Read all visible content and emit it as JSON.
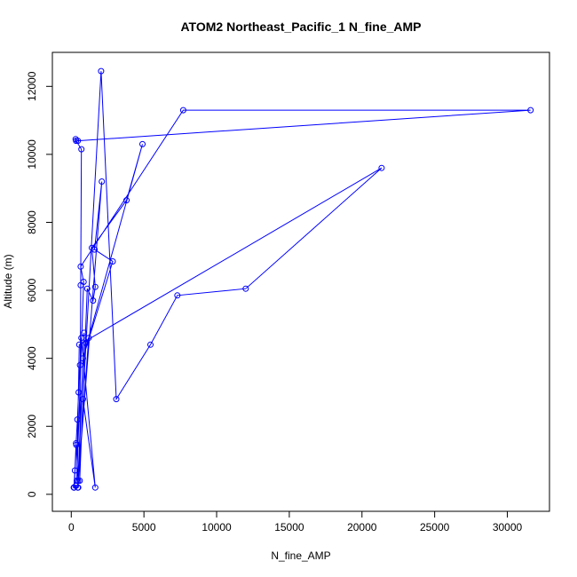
{
  "chart_data": {
    "type": "line",
    "title": "ATOM2 Northeast_Pacific_1 N_fine_AMP",
    "xlabel": "N_fine_AMP",
    "ylabel": "Altitude (m)",
    "xlim": [
      -1300,
      32900
    ],
    "ylim": [
      -500,
      13000
    ],
    "xticks": [
      0,
      5000,
      10000,
      15000,
      20000,
      25000,
      30000
    ],
    "yticks": [
      0,
      2000,
      4000,
      6000,
      8000,
      10000,
      12000
    ],
    "grid": false,
    "legend": "none",
    "color": "#0000ff",
    "series": [
      {
        "x": [
          180,
          250,
          330,
          420,
          510,
          600,
          700,
          1650,
          800,
          2050,
          3100,
          5450,
          7300,
          12000,
          21350,
          550,
          380,
          850,
          650,
          7700,
          31600,
          450,
          300,
          330,
          700,
          650,
          580,
          1100,
          1500,
          1650,
          1420,
          3800,
          4900,
          800,
          2850,
          1600,
          2100,
          470,
          350,
          200,
          320,
          180,
          480,
          880,
          440,
          1200,
          1000
        ],
        "y": [
          200,
          700,
          1500,
          2200,
          3000,
          3800,
          4600,
          200,
          2800,
          12450,
          2800,
          4400,
          5850,
          6050,
          9600,
          4400,
          400,
          6250,
          6700,
          11300,
          11300,
          10400,
          10450,
          10400,
          10150,
          6150,
          400,
          6050,
          5700,
          6100,
          7250,
          8650,
          10300,
          4000,
          6850,
          7200,
          9200,
          400,
          1450,
          200,
          250,
          200,
          200,
          4750,
          200,
          4600,
          4450
        ]
      }
    ]
  }
}
